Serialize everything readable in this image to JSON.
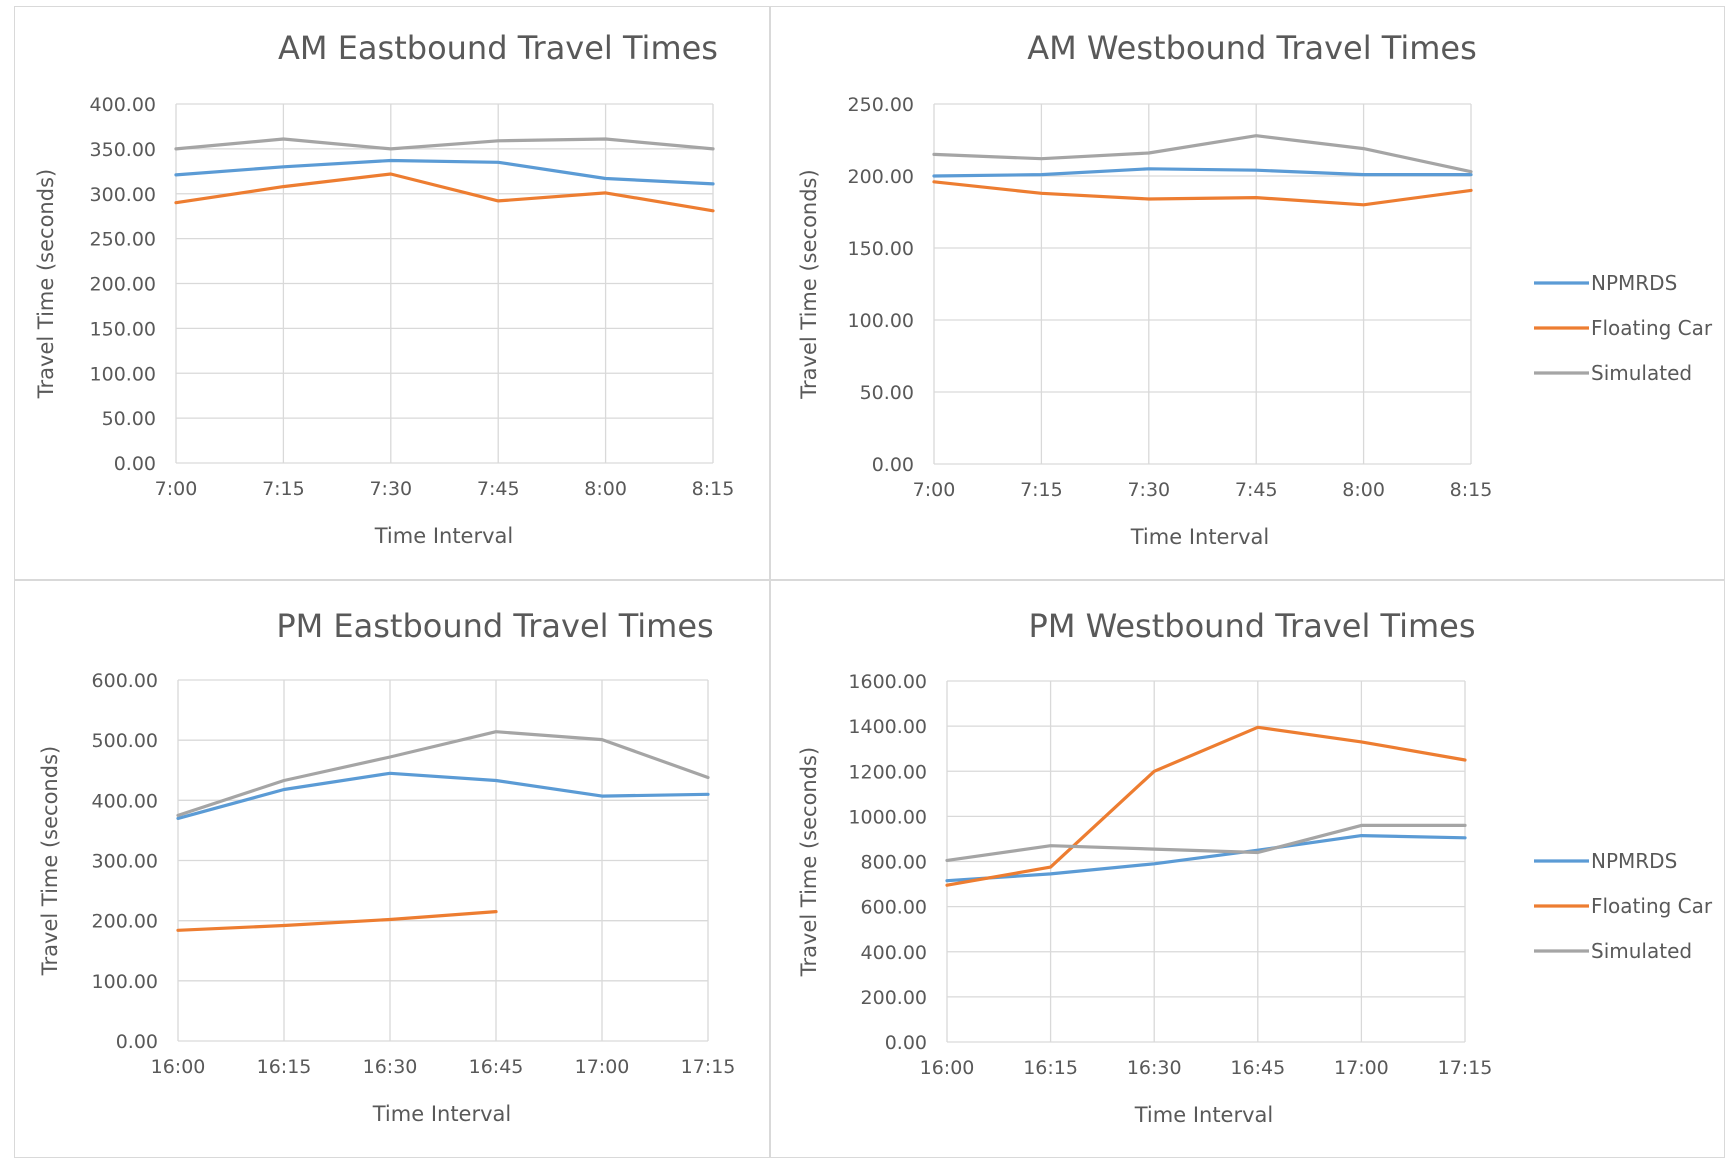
{
  "chart_data": [
    {
      "type": "line",
      "title": "AM Eastbound Travel Times",
      "xlabel": "Time Interval",
      "ylabel": "Travel Time (seconds)",
      "categories": [
        "7:00",
        "7:15",
        "7:30",
        "7:45",
        "8:00",
        "8:15"
      ],
      "ylim": [
        0,
        400
      ],
      "yticks": [
        "0.00",
        "50.00",
        "100.00",
        "150.00",
        "200.00",
        "250.00",
        "300.00",
        "350.00",
        "400.00"
      ],
      "grid": true,
      "legend": "none",
      "series": [
        {
          "name": "NPMRDS",
          "color": "#5b9bd5",
          "values": [
            321,
            330,
            337,
            335,
            317,
            311
          ]
        },
        {
          "name": "Floating Car",
          "color": "#ed7d31",
          "values": [
            290,
            308,
            322,
            292,
            301,
            281
          ]
        },
        {
          "name": "Simulated",
          "color": "#a5a5a5",
          "values": [
            350,
            361,
            350,
            359,
            361,
            350
          ]
        }
      ]
    },
    {
      "type": "line",
      "title": "AM Westbound Travel Times",
      "xlabel": "Time Interval",
      "ylabel": "Travel Time (seconds)",
      "categories": [
        "7:00",
        "7:15",
        "7:30",
        "7:45",
        "8:00",
        "8:15"
      ],
      "ylim": [
        0,
        250
      ],
      "yticks": [
        "0.00",
        "50.00",
        "100.00",
        "150.00",
        "200.00",
        "250.00"
      ],
      "grid": true,
      "legend": "right",
      "series": [
        {
          "name": "NPMRDS",
          "color": "#5b9bd5",
          "values": [
            200,
            201,
            205,
            204,
            201,
            201
          ]
        },
        {
          "name": "Floating Car",
          "color": "#ed7d31",
          "values": [
            196,
            188,
            184,
            185,
            180,
            190
          ]
        },
        {
          "name": "Simulated",
          "color": "#a5a5a5",
          "values": [
            215,
            212,
            216,
            228,
            219,
            203
          ]
        }
      ]
    },
    {
      "type": "line",
      "title": "PM Eastbound Travel Times",
      "xlabel": "Time Interval",
      "ylabel": "Travel Time (seconds)",
      "categories": [
        "16:00",
        "16:15",
        "16:30",
        "16:45",
        "17:00",
        "17:15"
      ],
      "ylim": [
        0,
        600
      ],
      "yticks": [
        "0.00",
        "100.00",
        "200.00",
        "300.00",
        "400.00",
        "500.00",
        "600.00"
      ],
      "grid": true,
      "legend": "none",
      "series": [
        {
          "name": "NPMRDS",
          "color": "#5b9bd5",
          "values": [
            370,
            418,
            445,
            433,
            407,
            410
          ]
        },
        {
          "name": "Floating Car",
          "color": "#ed7d31",
          "values": [
            184,
            192,
            202,
            215,
            null,
            null
          ]
        },
        {
          "name": "Simulated",
          "color": "#a5a5a5",
          "values": [
            375,
            433,
            472,
            514,
            501,
            438
          ]
        }
      ]
    },
    {
      "type": "line",
      "title": "PM Westbound Travel Times",
      "xlabel": "Time Interval",
      "ylabel": "Travel Time (seconds)",
      "categories": [
        "16:00",
        "16:15",
        "16:30",
        "16:45",
        "17:00",
        "17:15"
      ],
      "ylim": [
        0,
        1600
      ],
      "yticks": [
        "0.00",
        "200.00",
        "400.00",
        "600.00",
        "800.00",
        "1000.00",
        "1200.00",
        "1400.00",
        "1600.00"
      ],
      "grid": true,
      "legend": "right",
      "series": [
        {
          "name": "NPMRDS",
          "color": "#5b9bd5",
          "values": [
            715,
            745,
            790,
            850,
            915,
            905
          ]
        },
        {
          "name": "Floating Car",
          "color": "#ed7d31",
          "values": [
            695,
            775,
            1200,
            1395,
            1330,
            1250
          ]
        },
        {
          "name": "Simulated",
          "color": "#a5a5a5",
          "values": [
            805,
            870,
            855,
            840,
            960,
            960
          ]
        }
      ]
    }
  ]
}
